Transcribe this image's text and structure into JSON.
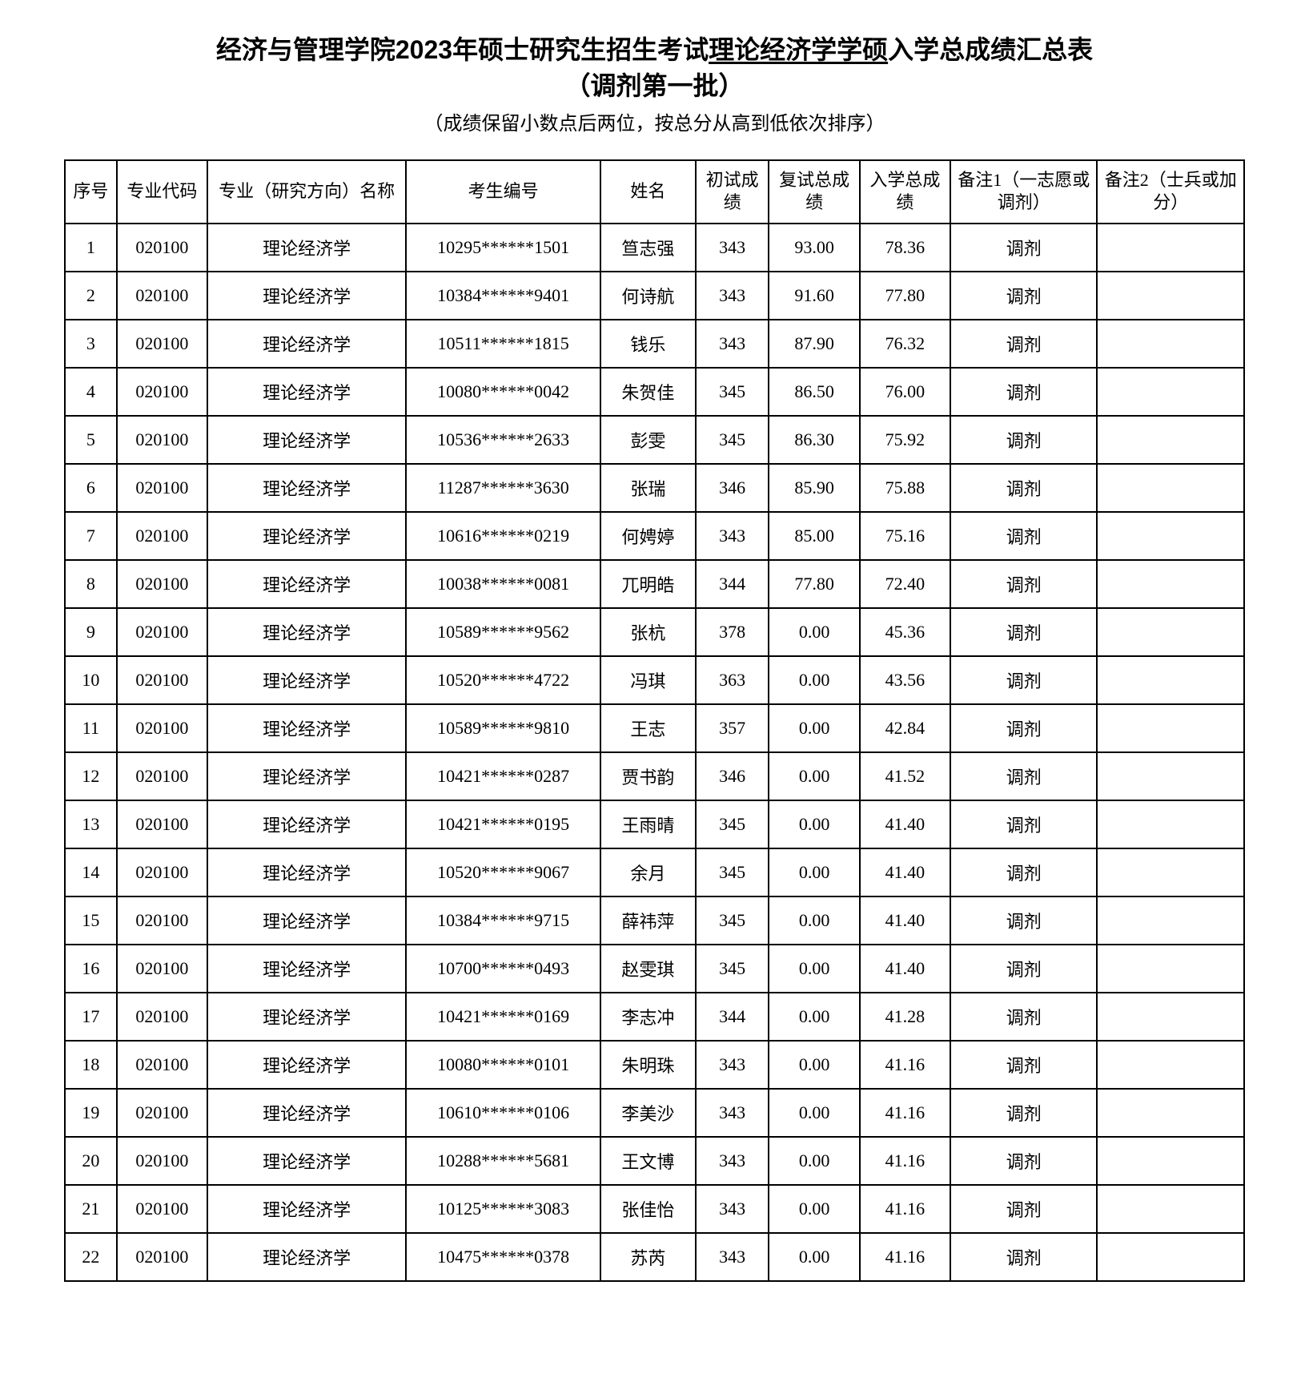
{
  "header": {
    "title_prefix": "经济与管理学院2023年硕士研究生招生考试",
    "title_underlined": "理论经济学学硕",
    "title_suffix": "入学总成绩汇总表",
    "title_line2": "（调剂第一批）",
    "subtitle": "（成绩保留小数点后两位，按总分从高到低依次排序）"
  },
  "table": {
    "columns": [
      "序号",
      "专业代码",
      "专业（研究方向）名称",
      "考生编号",
      "姓名",
      "初试成绩",
      "复试总成绩",
      "入学总成绩",
      "备注1（一志愿或调剂）",
      "备注2（士兵或加分）"
    ],
    "col_classes": [
      "col-index",
      "col-code",
      "col-major",
      "col-exam",
      "col-name",
      "col-score1",
      "col-score2",
      "col-score3",
      "col-note1",
      "col-note2"
    ],
    "rows": [
      [
        "1",
        "020100",
        "理论经济学",
        "10295******1501",
        "笪志强",
        "343",
        "93.00",
        "78.36",
        "调剂",
        ""
      ],
      [
        "2",
        "020100",
        "理论经济学",
        "10384******9401",
        "何诗航",
        "343",
        "91.60",
        "77.80",
        "调剂",
        ""
      ],
      [
        "3",
        "020100",
        "理论经济学",
        "10511******1815",
        "钱乐",
        "343",
        "87.90",
        "76.32",
        "调剂",
        ""
      ],
      [
        "4",
        "020100",
        "理论经济学",
        "10080******0042",
        "朱贺佳",
        "345",
        "86.50",
        "76.00",
        "调剂",
        ""
      ],
      [
        "5",
        "020100",
        "理论经济学",
        "10536******2633",
        "彭雯",
        "345",
        "86.30",
        "75.92",
        "调剂",
        ""
      ],
      [
        "6",
        "020100",
        "理论经济学",
        "11287******3630",
        "张瑞",
        "346",
        "85.90",
        "75.88",
        "调剂",
        ""
      ],
      [
        "7",
        "020100",
        "理论经济学",
        "10616******0219",
        "何娉婷",
        "343",
        "85.00",
        "75.16",
        "调剂",
        ""
      ],
      [
        "8",
        "020100",
        "理论经济学",
        "10038******0081",
        "兀明皓",
        "344",
        "77.80",
        "72.40",
        "调剂",
        ""
      ],
      [
        "9",
        "020100",
        "理论经济学",
        "10589******9562",
        "张杭",
        "378",
        "0.00",
        "45.36",
        "调剂",
        ""
      ],
      [
        "10",
        "020100",
        "理论经济学",
        "10520******4722",
        "冯琪",
        "363",
        "0.00",
        "43.56",
        "调剂",
        ""
      ],
      [
        "11",
        "020100",
        "理论经济学",
        "10589******9810",
        "王志",
        "357",
        "0.00",
        "42.84",
        "调剂",
        ""
      ],
      [
        "12",
        "020100",
        "理论经济学",
        "10421******0287",
        "贾书韵",
        "346",
        "0.00",
        "41.52",
        "调剂",
        ""
      ],
      [
        "13",
        "020100",
        "理论经济学",
        "10421******0195",
        "王雨晴",
        "345",
        "0.00",
        "41.40",
        "调剂",
        ""
      ],
      [
        "14",
        "020100",
        "理论经济学",
        "10520******9067",
        "余月",
        "345",
        "0.00",
        "41.40",
        "调剂",
        ""
      ],
      [
        "15",
        "020100",
        "理论经济学",
        "10384******9715",
        "薛祎萍",
        "345",
        "0.00",
        "41.40",
        "调剂",
        ""
      ],
      [
        "16",
        "020100",
        "理论经济学",
        "10700******0493",
        "赵雯琪",
        "345",
        "0.00",
        "41.40",
        "调剂",
        ""
      ],
      [
        "17",
        "020100",
        "理论经济学",
        "10421******0169",
        "李志冲",
        "344",
        "0.00",
        "41.28",
        "调剂",
        ""
      ],
      [
        "18",
        "020100",
        "理论经济学",
        "10080******0101",
        "朱明珠",
        "343",
        "0.00",
        "41.16",
        "调剂",
        ""
      ],
      [
        "19",
        "020100",
        "理论经济学",
        "10610******0106",
        "李美沙",
        "343",
        "0.00",
        "41.16",
        "调剂",
        ""
      ],
      [
        "20",
        "020100",
        "理论经济学",
        "10288******5681",
        "王文博",
        "343",
        "0.00",
        "41.16",
        "调剂",
        ""
      ],
      [
        "21",
        "020100",
        "理论经济学",
        "10125******3083",
        "张佳怡",
        "343",
        "0.00",
        "41.16",
        "调剂",
        ""
      ],
      [
        "22",
        "020100",
        "理论经济学",
        "10475******0378",
        "苏芮",
        "343",
        "0.00",
        "41.16",
        "调剂",
        ""
      ]
    ]
  },
  "style": {
    "background_color": "#ffffff",
    "border_color": "#000000",
    "text_color": "#000000",
    "title_fontsize": 32,
    "subtitle_fontsize": 24,
    "cell_fontsize": 22
  }
}
